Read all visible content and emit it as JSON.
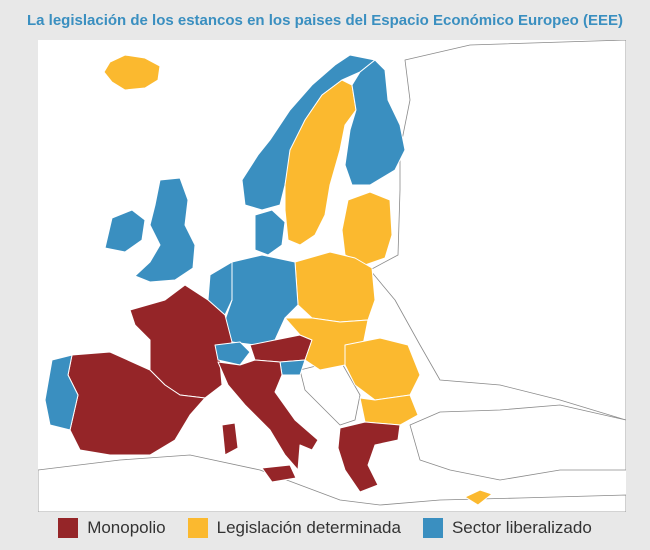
{
  "title": "La legislación de los estancos en los paises del Espacio Económico Europeo (EEE)",
  "legend": [
    {
      "label": "Monopolio",
      "color": "#952528"
    },
    {
      "label": "Legislación determinada",
      "color": "#fbb92f"
    },
    {
      "label": "Sector liberalizado",
      "color": "#3a8fc0"
    }
  ]
}
